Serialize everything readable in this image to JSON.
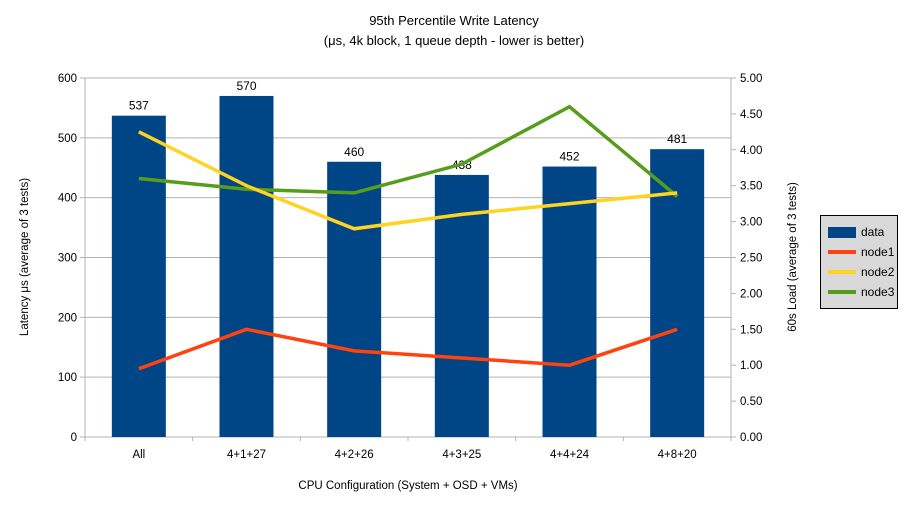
{
  "chart_data": {
    "type": "bar",
    "combo": "bar chart with line overlays on secondary axis",
    "title": "95th Percentile Write Latency",
    "subtitle": "(μs, 4k block, 1 queue depth - lower is better)",
    "categories": [
      "All",
      "4+1+27",
      "4+2+26",
      "4+3+25",
      "4+4+24",
      "4+8+20"
    ],
    "bar_series": {
      "name": "data",
      "axis": "left",
      "values": [
        537,
        570,
        460,
        438,
        452,
        481
      ],
      "labels_visible": true,
      "color": "#004586"
    },
    "line_series": [
      {
        "name": "node1",
        "axis": "right",
        "values": [
          0.95,
          1.5,
          1.2,
          1.1,
          1.0,
          1.5
        ],
        "color": "#ff420e"
      },
      {
        "name": "node2",
        "axis": "right",
        "values": [
          4.25,
          3.5,
          2.9,
          3.1,
          3.25,
          3.4
        ],
        "color": "#ffd320"
      },
      {
        "name": "node3",
        "axis": "right",
        "values": [
          3.6,
          3.45,
          3.4,
          3.8,
          4.6,
          3.35
        ],
        "color": "#579d1c"
      }
    ],
    "draw_order": [
      "node1",
      "node3",
      "node2"
    ],
    "x_axis": {
      "title": "CPU Configuration (System + OSD + VMs)"
    },
    "left_axis": {
      "title": "Latency μs (average of 3 tests)",
      "min": 0,
      "max": 600,
      "step": 100
    },
    "right_axis": {
      "title": "60s Load (average of 3 tests)",
      "min": 0,
      "max": 5,
      "step": 0.5,
      "decimals": 2
    },
    "grid": {
      "horizontal": true,
      "vertical": false,
      "color": "#b3b3b3"
    },
    "legend": {
      "position": "right",
      "entries": [
        "data",
        "node1",
        "node2",
        "node3"
      ],
      "background": "#d9d9d9",
      "border": "#000000"
    },
    "colors": {
      "background": "#ffffff",
      "text": "#000000"
    }
  }
}
